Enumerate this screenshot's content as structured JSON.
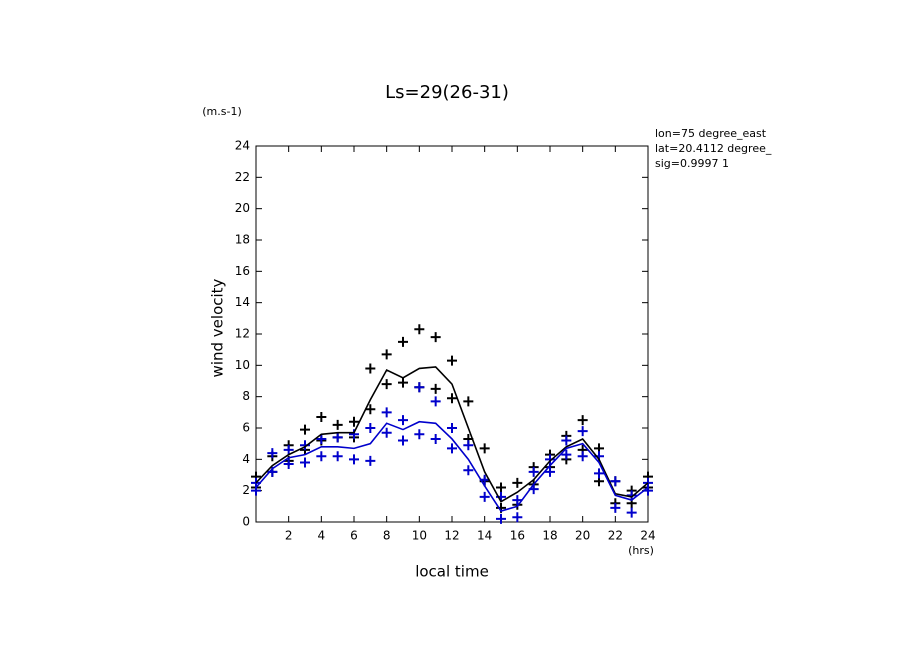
{
  "chart_data": {
    "type": "line",
    "title": "Ls=29(26-31)",
    "y_unit": "(m.s-1)",
    "x_unit": "(hrs)",
    "xlabel": "local time",
    "ylabel": "wind velocity",
    "annotations": [
      "lon=75 degree_east",
      "lat=20.4112 degree_",
      "sig=0.9997 1"
    ],
    "x": [
      0,
      1,
      2,
      3,
      4,
      5,
      6,
      7,
      8,
      9,
      10,
      11,
      12,
      13,
      14,
      15,
      16,
      17,
      18,
      19,
      20,
      21,
      22,
      23,
      24
    ],
    "series": [
      {
        "color": "#000000",
        "values": [
          2.5,
          3.6,
          4.3,
          4.8,
          5.6,
          5.7,
          5.7,
          7.8,
          9.7,
          9.2,
          9.8,
          9.9,
          8.8,
          6.0,
          3.2,
          1.3,
          1.9,
          2.7,
          3.9,
          4.8,
          5.3,
          4.0,
          1.8,
          1.6,
          2.5
        ]
      },
      {
        "color": "#0000cc",
        "values": [
          2.2,
          3.4,
          4.1,
          4.3,
          4.8,
          4.8,
          4.7,
          5.0,
          6.3,
          5.9,
          6.4,
          6.3,
          5.3,
          4.0,
          2.3,
          0.7,
          1.0,
          2.4,
          3.6,
          4.7,
          5.0,
          3.8,
          1.7,
          1.4,
          2.2
        ]
      }
    ],
    "scatter": [
      {
        "color": "#000000",
        "x": [
          0,
          0,
          1,
          1,
          2,
          2,
          3,
          3,
          4,
          4,
          5,
          5,
          6,
          6,
          7,
          7,
          8,
          8,
          9,
          9,
          10,
          10,
          11,
          11,
          12,
          12,
          13,
          13,
          14,
          14,
          15,
          15,
          16,
          16,
          17,
          17,
          18,
          18,
          19,
          19,
          20,
          20,
          21,
          21,
          22,
          22,
          23,
          23,
          24,
          24
        ],
        "values": [
          2.9,
          2.2,
          4.2,
          3.2,
          4.9,
          3.9,
          5.9,
          4.6,
          6.7,
          5.2,
          6.2,
          5.4,
          6.4,
          5.4,
          9.8,
          7.2,
          10.7,
          8.8,
          11.5,
          8.9,
          12.3,
          8.6,
          11.8,
          8.5,
          10.3,
          7.9,
          7.7,
          5.3,
          4.7,
          2.6,
          2.2,
          0.9,
          2.5,
          1.1,
          3.5,
          2.4,
          4.3,
          3.5,
          5.5,
          4.0,
          6.5,
          4.6,
          4.7,
          2.6,
          2.6,
          1.2,
          2.0,
          1.2,
          2.9,
          2.2
        ]
      },
      {
        "color": "#0000cc",
        "x": [
          0,
          0,
          1,
          1,
          2,
          2,
          3,
          3,
          4,
          4,
          5,
          5,
          6,
          6,
          7,
          7,
          8,
          8,
          9,
          9,
          10,
          10,
          11,
          11,
          12,
          12,
          13,
          13,
          14,
          14,
          15,
          15,
          16,
          16,
          17,
          17,
          18,
          18,
          19,
          19,
          20,
          20,
          21,
          21,
          22,
          22,
          23,
          23,
          24,
          24
        ],
        "values": [
          2.5,
          2.0,
          4.4,
          3.2,
          4.6,
          3.7,
          4.9,
          3.8,
          5.3,
          4.2,
          5.4,
          4.2,
          5.6,
          4.0,
          6.0,
          3.9,
          7.0,
          5.7,
          6.5,
          5.2,
          8.6,
          5.6,
          7.7,
          5.3,
          6.0,
          4.7,
          4.9,
          3.3,
          2.7,
          1.6,
          1.6,
          0.2,
          1.4,
          0.3,
          3.2,
          2.1,
          4.0,
          3.2,
          5.2,
          4.3,
          5.8,
          4.2,
          4.2,
          3.1,
          2.6,
          0.9,
          1.7,
          0.6,
          2.5,
          2.0
        ]
      }
    ],
    "xlim": [
      0,
      24
    ],
    "ylim": [
      0,
      24
    ],
    "xticks": [
      2,
      4,
      6,
      8,
      10,
      12,
      14,
      16,
      18,
      20,
      22,
      24
    ],
    "yticks": [
      0,
      2,
      4,
      6,
      8,
      10,
      12,
      14,
      16,
      18,
      20,
      22,
      24
    ]
  }
}
